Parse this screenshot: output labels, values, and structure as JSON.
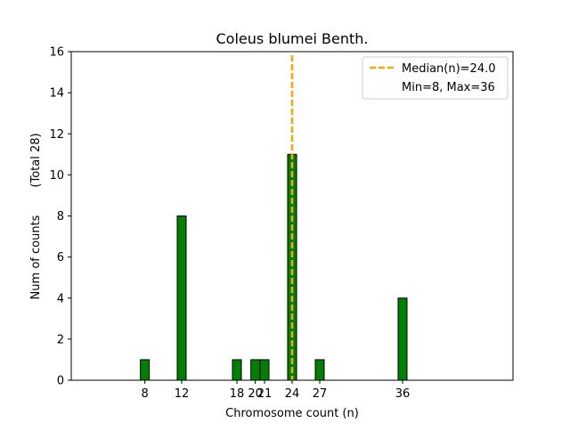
{
  "chart_data": {
    "type": "bar",
    "title": "Coleus blumei Benth.",
    "xlabel": "Chromosome count (n)",
    "ylabel": "Num of counts",
    "ylabel_total": "(Total 28)",
    "x": [
      8,
      12,
      18,
      20,
      21,
      24,
      27,
      36
    ],
    "values": [
      1,
      8,
      1,
      1,
      1,
      11,
      1,
      4
    ],
    "xticks": [
      8,
      12,
      18,
      20,
      21,
      24,
      27,
      36
    ],
    "xlim": [
      0,
      48
    ],
    "ylim": [
      0,
      16
    ],
    "yticks": [
      0,
      2,
      4,
      6,
      8,
      10,
      12,
      14,
      16
    ],
    "bar_color": "#008000",
    "bar_edge_color": "#000000",
    "grid": false,
    "median": {
      "value": 24.0,
      "label": "Median(n)=24.0",
      "color": "#ffa500",
      "style": "dashed"
    },
    "legend": {
      "placement": "top-right",
      "entries": [
        "Median(n)=24.0",
        "Min=8, Max=36"
      ]
    }
  }
}
